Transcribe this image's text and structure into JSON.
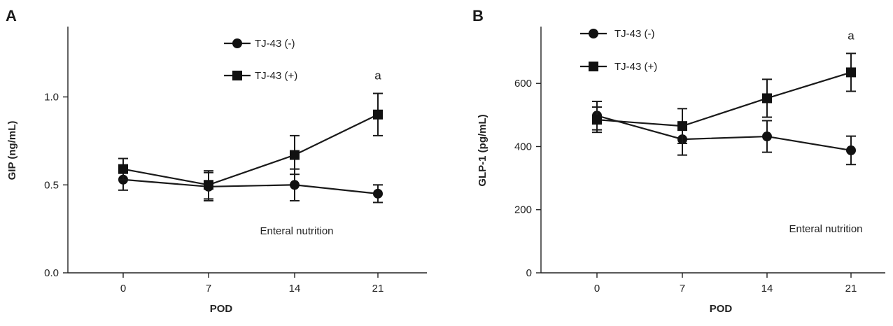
{
  "chart_data": [
    {
      "type": "line",
      "panel_label": "A",
      "xlabel": "POD",
      "ylabel": "GIP (ng/mL)",
      "x": [
        0,
        7,
        14,
        21
      ],
      "xlim": [
        -5,
        30
      ],
      "ylim": [
        0,
        1.4
      ],
      "yticks": [
        0,
        0.5,
        1.0
      ],
      "ytick_labels": [
        "0.0",
        "0.5",
        "1.0"
      ],
      "xtick_labels": [
        "0",
        "7",
        "14",
        "21"
      ],
      "annotation": "Enteral nutrition",
      "significance_marks": [
        {
          "x": 21,
          "series": 1,
          "text": "a"
        }
      ],
      "legend_position": "top-center",
      "series": [
        {
          "name": "TJ-43 (-)",
          "marker": "circle",
          "values": [
            0.53,
            0.49,
            0.5,
            0.45
          ],
          "errors": [
            0.06,
            0.08,
            0.09,
            0.05
          ]
        },
        {
          "name": "TJ-43 (+)",
          "marker": "square",
          "values": [
            0.59,
            0.5,
            0.67,
            0.9
          ],
          "errors": [
            0.06,
            0.08,
            0.11,
            0.12
          ]
        }
      ]
    },
    {
      "type": "line",
      "panel_label": "B",
      "xlabel": "POD",
      "ylabel": "GLP-1 (pg/mL)",
      "x": [
        0,
        7,
        14,
        21
      ],
      "xlim": [
        -5,
        30
      ],
      "ylim": [
        0,
        780
      ],
      "yticks": [
        0,
        200,
        400,
        600
      ],
      "ytick_labels": [
        "0",
        "200",
        "400",
        "600"
      ],
      "xtick_labels": [
        "0",
        "7",
        "14",
        "21"
      ],
      "annotation": "Enteral nutrition",
      "significance_marks": [
        {
          "x": 21,
          "series": 1,
          "text": "a"
        }
      ],
      "legend_position": "top-left",
      "series": [
        {
          "name": "TJ-43 (-)",
          "marker": "circle",
          "values": [
            498,
            423,
            432,
            388
          ],
          "errors": [
            45,
            50,
            50,
            45
          ]
        },
        {
          "name": "TJ-43 (+)",
          "marker": "square",
          "values": [
            485,
            465,
            553,
            635
          ],
          "errors": [
            40,
            55,
            60,
            60
          ]
        }
      ]
    }
  ]
}
